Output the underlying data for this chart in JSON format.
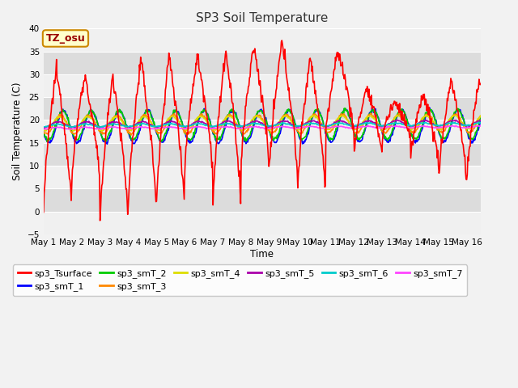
{
  "title": "SP3 Soil Temperature",
  "ylabel": "Soil Temperature (C)",
  "xlabel": "Time",
  "annotation": "TZ_osu",
  "ylim": [
    -5,
    40
  ],
  "xlim": [
    0,
    15.5
  ],
  "x_ticks": [
    0,
    1,
    2,
    3,
    4,
    5,
    6,
    7,
    8,
    9,
    10,
    11,
    12,
    13,
    14,
    15
  ],
  "x_tick_labels": [
    "May 1",
    "May 2",
    "May 3",
    "May 4",
    "May 5",
    "May 6",
    "May 7",
    "May 8",
    "May 9",
    "May 10",
    "May 11",
    "May 12",
    "May 13",
    "May 14",
    "May 15",
    "May 16"
  ],
  "y_ticks": [
    -5,
    0,
    5,
    10,
    15,
    20,
    25,
    30,
    35,
    40
  ],
  "series_colors": {
    "sp3_Tsurface": "#ff0000",
    "sp3_smT_1": "#0000ff",
    "sp3_smT_2": "#00cc00",
    "sp3_smT_3": "#ff8800",
    "sp3_smT_4": "#dddd00",
    "sp3_smT_5": "#aa00aa",
    "sp3_smT_6": "#00cccc",
    "sp3_smT_7": "#ff44ff"
  },
  "bg_light": "#f0f0f0",
  "bg_dark": "#dcdcdc",
  "grid_color": "#ffffff",
  "title_color": "#333333",
  "annotation_bg": "#ffffcc",
  "annotation_border": "#cc8800",
  "annotation_text_color": "#990000",
  "legend_ncol1": 6,
  "legend_ncol2": 2
}
